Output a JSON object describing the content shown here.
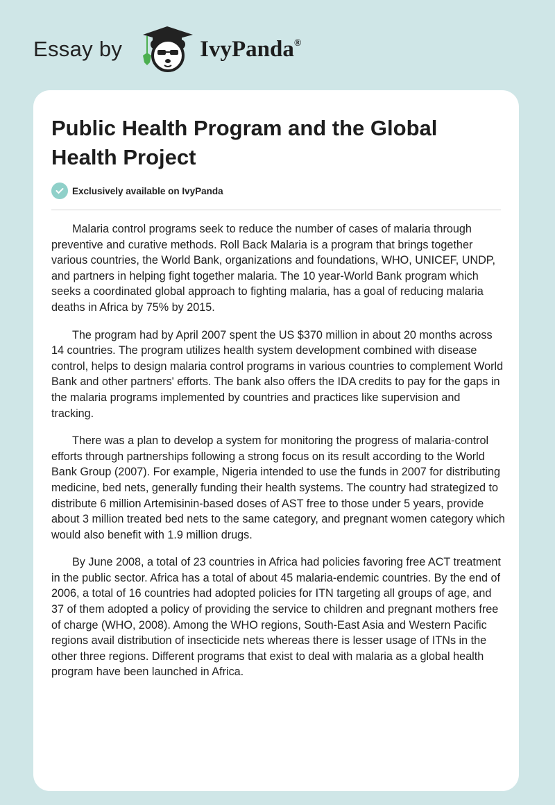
{
  "header": {
    "essay_by": "Essay by",
    "brand": "IvyPanda",
    "registered": "®"
  },
  "article": {
    "title": "Public Health Program and the Global Health Project",
    "exclusive_label": "Exclusively available on IvyPanda",
    "paragraphs": [
      "Malaria control programs seek to reduce the number of cases of malaria through preventive and curative methods. Roll Back Malaria is a program that brings together various countries, the World Bank, organizations and foundations, WHO, UNICEF, UNDP, and partners in helping fight together malaria. The 10 year-World Bank program which seeks a coordinated global approach to fighting malaria, has a goal of reducing malaria deaths in Africa by 75% by 2015.",
      "The program had by April 2007 spent the US $370 million in about 20 months across 14 countries. The program utilizes health system development combined with disease control, helps to design malaria control programs in various countries to complement World Bank and other partners' efforts. The bank also offers the IDA credits to pay for the gaps in the malaria programs implemented by countries and practices like supervision and tracking.",
      "There was a plan to develop a system for monitoring the progress of malaria-control efforts through partnerships following a strong focus on its result according to the World Bank Group (2007). For example, Nigeria intended to use the funds in 2007 for distributing medicine, bed nets, generally funding their health systems. The country had strategized to distribute 6 million Artemisinin-based doses of AST free to those under 5 years, provide about 3 million treated bed nets to the same category, and pregnant women category which would also benefit with 1.9 million drugs.",
      "By June 2008, a total of 23 countries in Africa had policies favoring free ACT treatment in the public sector. Africa has a total of about 45 malaria-endemic countries. By the end of 2006, a total of 16 countries had adopted policies for ITN targeting all groups of age, and 37 of them adopted a policy of providing the service to children and pregnant mothers free of charge (WHO, 2008). Among the WHO regions, South-East Asia and Western Pacific regions avail distribution of insecticide nets whereas there is lesser usage of ITNs in the other three regions. Different programs that exist to deal with malaria as a global health program have been launched in Africa."
    ]
  },
  "colors": {
    "background": "#cfe6e7",
    "check_badge": "#8fd0c9",
    "ivy_leaf": "#4caf50"
  }
}
